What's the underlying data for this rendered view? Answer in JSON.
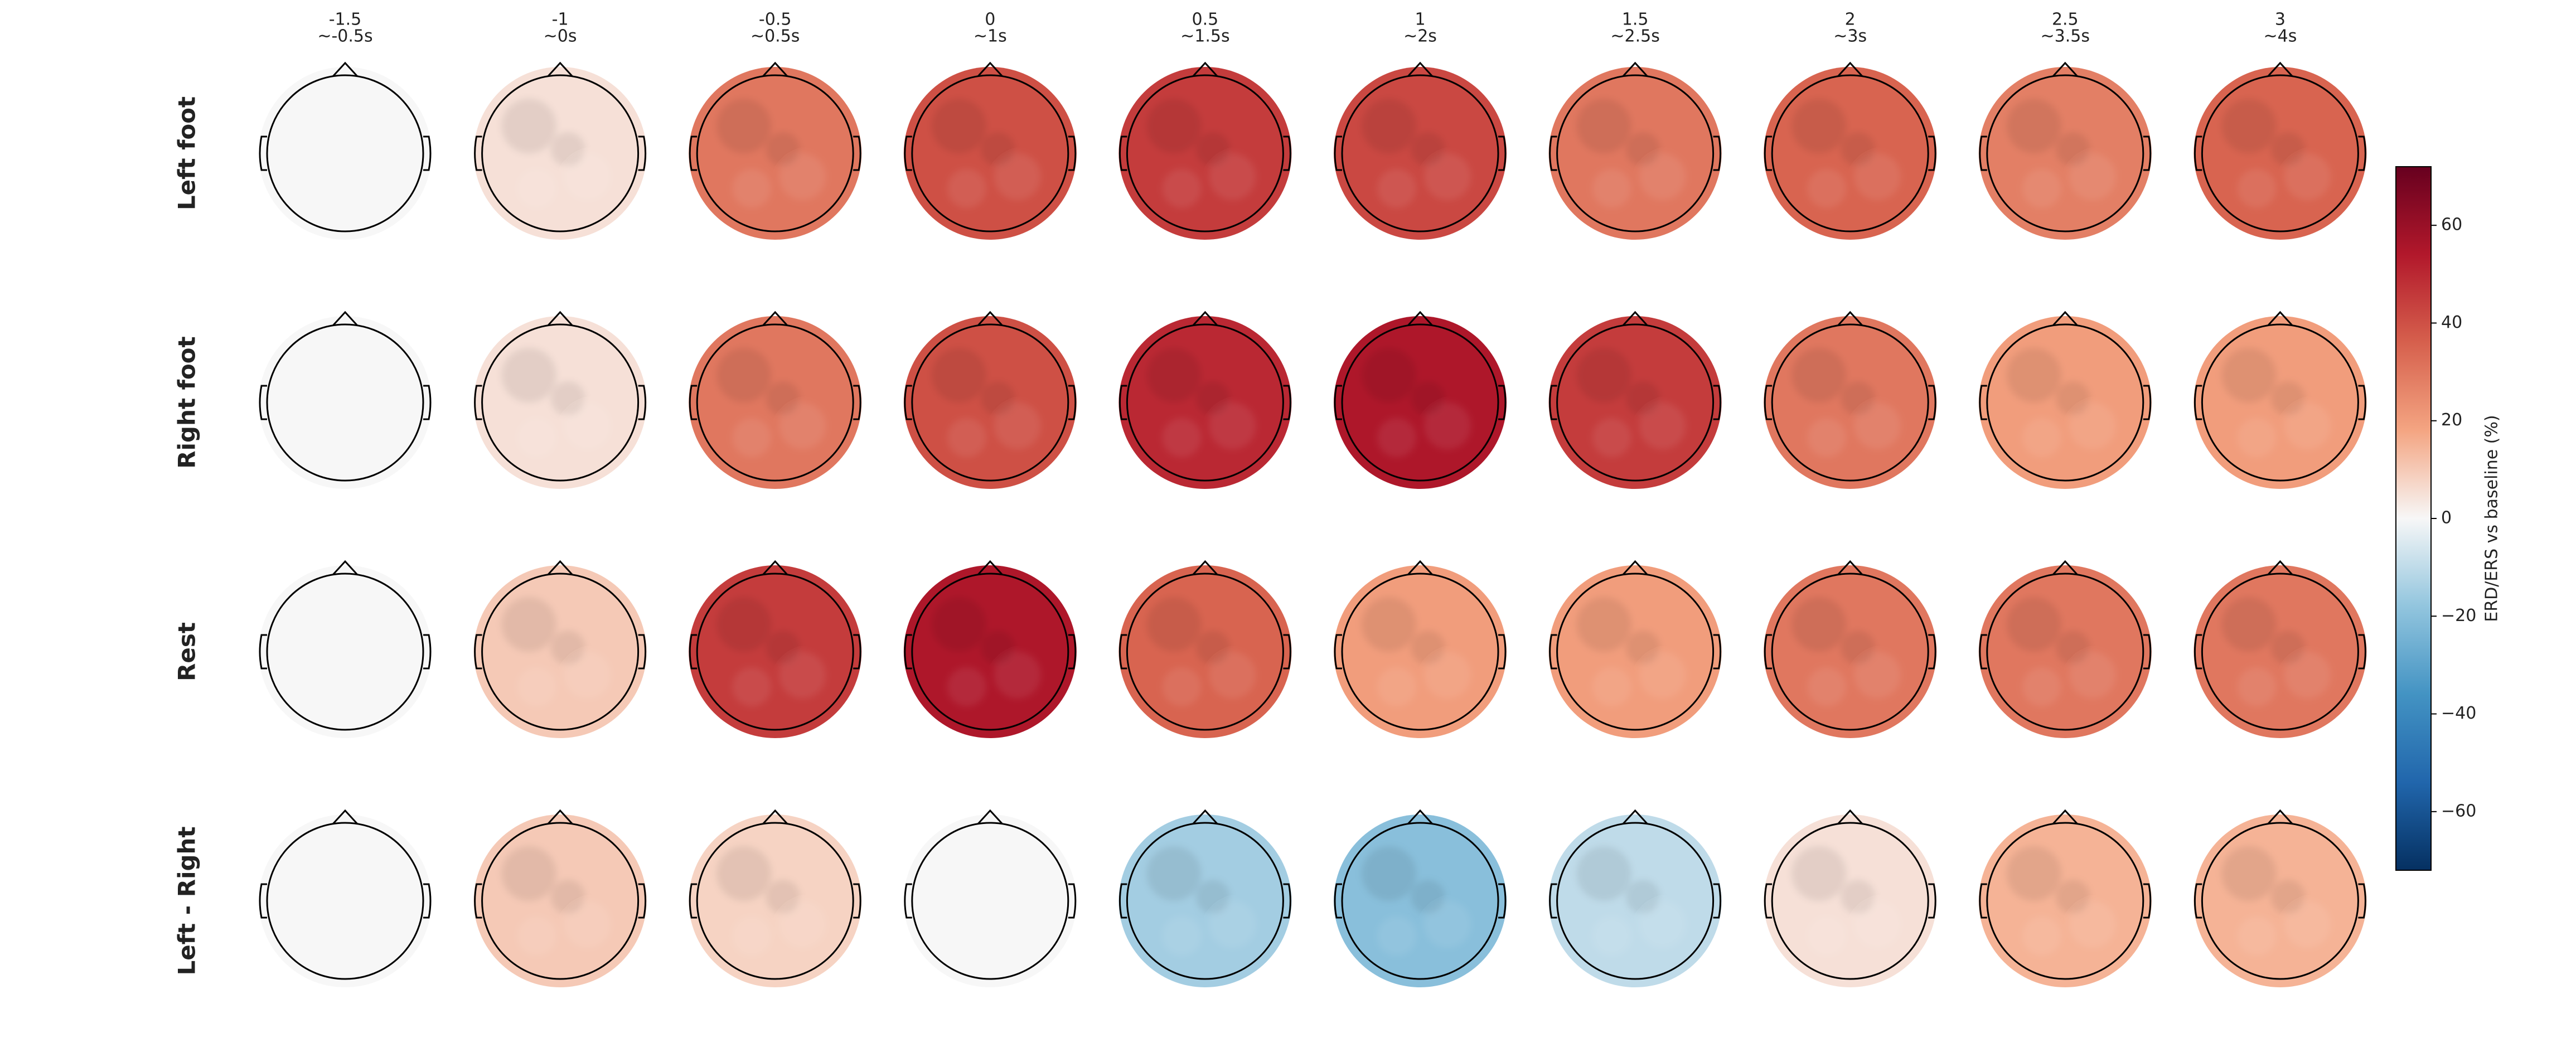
{
  "chart_data": {
    "type": "topomap_grid",
    "columns": [
      {
        "time": "-1.5",
        "window": "~-0.5s"
      },
      {
        "time": "-1",
        "window": "~0s"
      },
      {
        "time": "-0.5",
        "window": "~0.5s"
      },
      {
        "time": "0",
        "window": "~1s"
      },
      {
        "time": "0.5",
        "window": "~1.5s"
      },
      {
        "time": "1",
        "window": "~2s"
      },
      {
        "time": "1.5",
        "window": "~2.5s"
      },
      {
        "time": "2",
        "window": "~3s"
      },
      {
        "time": "2.5",
        "window": "~3.5s"
      },
      {
        "time": "3",
        "window": "~4s"
      }
    ],
    "rows": [
      "Left foot",
      "Right foot",
      "Rest",
      "Left - Right"
    ],
    "maps": [
      [
        0,
        5,
        30,
        40,
        45,
        42,
        30,
        35,
        28,
        35
      ],
      [
        0,
        5,
        30,
        40,
        50,
        55,
        45,
        30,
        20,
        20
      ],
      [
        0,
        10,
        45,
        55,
        35,
        20,
        20,
        30,
        30,
        30
      ],
      [
        0,
        10,
        8,
        0,
        -15,
        -20,
        -10,
        5,
        15,
        15
      ]
    ],
    "colorbar_label": "ERD/ERS vs baseline (%)",
    "clim": [
      -72,
      72
    ],
    "cticks": [
      {
        "value": -60,
        "label": "−60"
      },
      {
        "value": -40,
        "label": "−40"
      },
      {
        "value": -20,
        "label": "−20"
      },
      0,
      20,
      40,
      60
    ],
    "colormap_colors": [
      "#053061",
      "#2166ac",
      "#4393c3",
      "#92c5de",
      "#f7f7f7",
      "#f4a582",
      "#d6604d",
      "#b2182b",
      "#67001f"
    ]
  }
}
